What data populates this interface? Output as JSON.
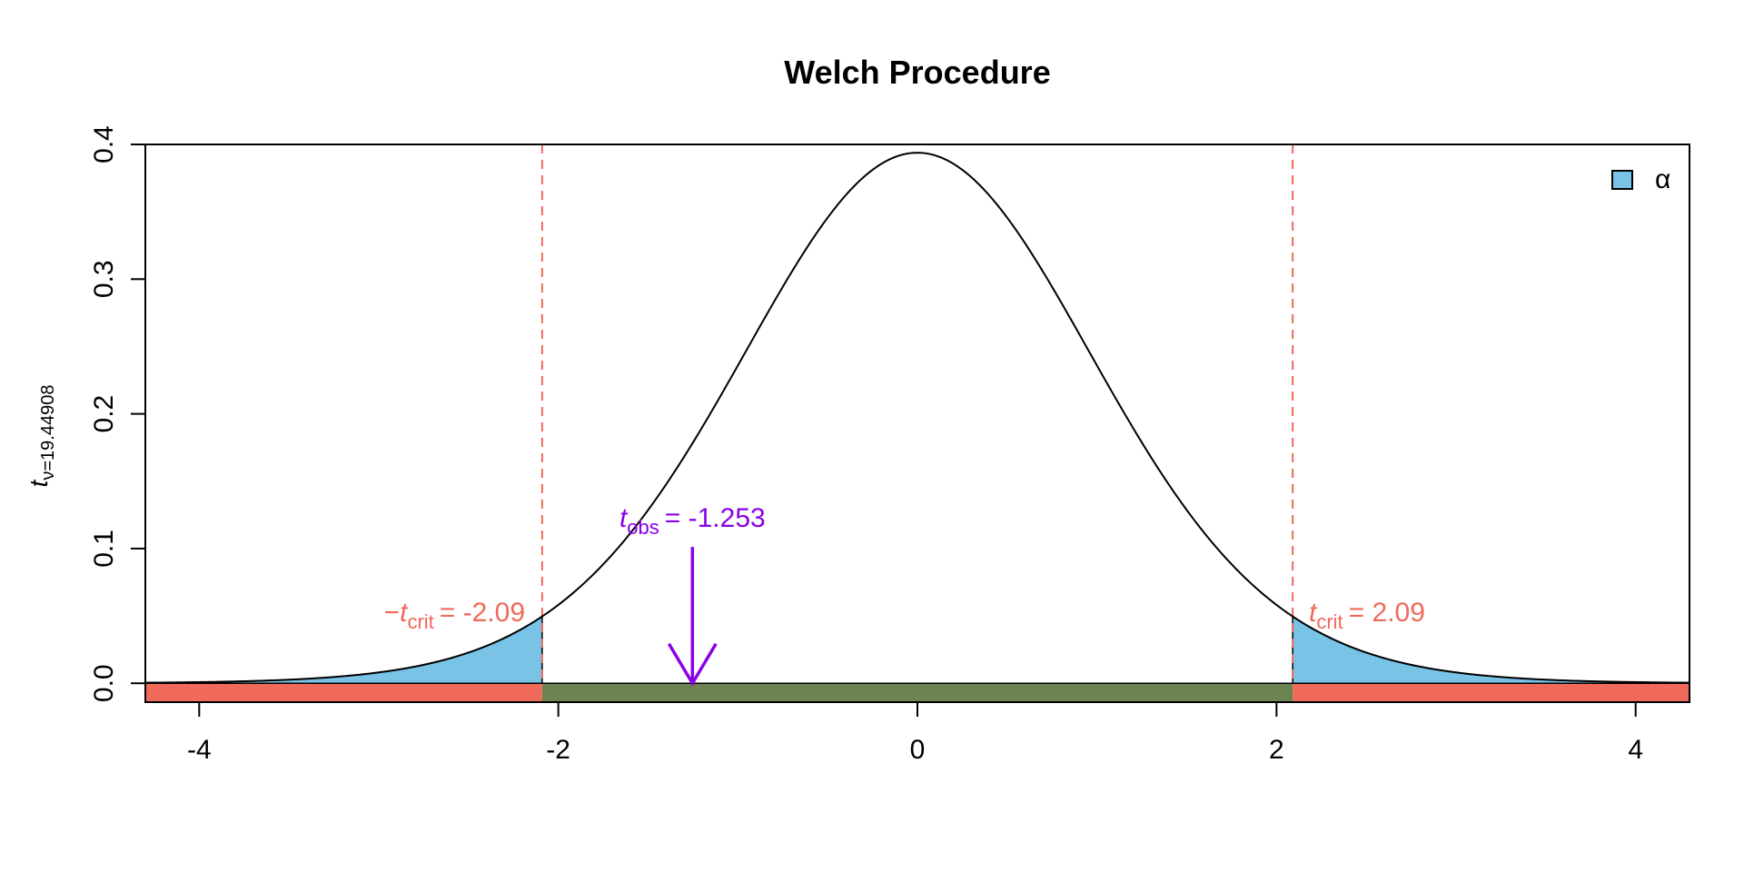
{
  "chart_data": {
    "type": "area",
    "title": "Welch Procedure",
    "ylabel": {
      "main": "t",
      "sub": "ν=19.44908"
    },
    "xlabel": "",
    "xlim": [
      -4.3,
      4.3
    ],
    "ylim": [
      -0.014,
      0.4
    ],
    "x_ticks": [
      -4,
      -2,
      0,
      2,
      4
    ],
    "x_tick_labels": [
      "-4",
      "-2",
      "0",
      "2",
      "4"
    ],
    "y_ticks": [
      0.0,
      0.1,
      0.2,
      0.3,
      0.4
    ],
    "y_tick_labels": [
      "0.0",
      "0.1",
      "0.2",
      "0.3",
      "0.4"
    ],
    "df": 19.44908,
    "t_crit": 2.09,
    "t_obs": -1.253,
    "annotations": {
      "neg_crit": {
        "prefix": "−",
        "main": "t",
        "sub": "crit",
        "value": "= -2.09"
      },
      "pos_crit": {
        "main": "t",
        "sub": "crit",
        "value": "= 2.09"
      },
      "obs": {
        "main": "t",
        "sub": "obs",
        "value": "= -1.253"
      }
    },
    "legend": [
      {
        "label": "α",
        "color": "#78c3e6"
      }
    ],
    "legend_position": "top-right",
    "colors": {
      "curve": "#000000",
      "alpha_fill": "#78c3e6",
      "rejection_band": "#ef6a5a",
      "acceptance_band": "#6b8452",
      "crit_line": "#ef6a5a",
      "crit_text": "#ef6a5a",
      "obs": "#8a00e6"
    }
  }
}
